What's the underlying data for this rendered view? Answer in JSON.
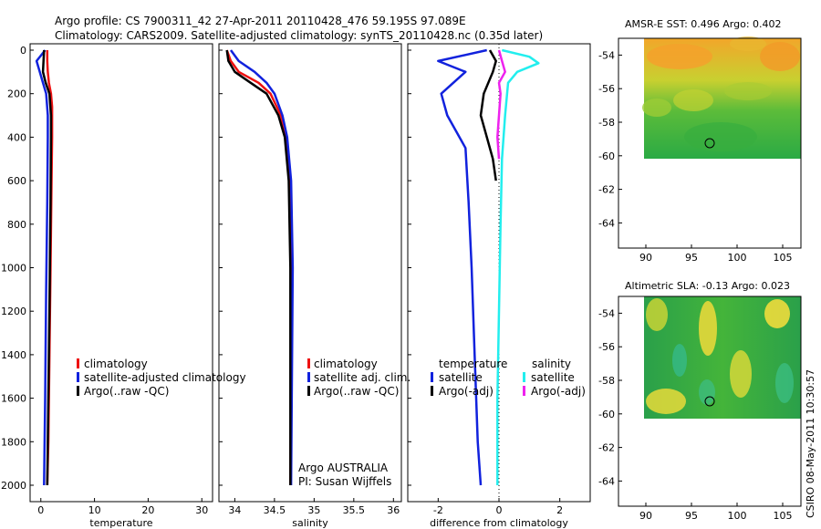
{
  "header": {
    "line1": "Argo profile: CS 7900311_42 27-Apr-2011 20110428_476 59.195S 97.089E",
    "line2": "Climatology: CARS2009. Satellite-adjusted climatology: synTS_20110428.nc (0.35d later)"
  },
  "credit": "CSIRO 08-May-2011 10:30:57",
  "colors": {
    "climatology": "#ee1111",
    "satellite": "#1122dd",
    "argo": "#000000",
    "satellite_sal": "#22eeee",
    "argo_sal": "#ee22ee"
  },
  "chart_data": [
    {
      "id": "temperature-panel",
      "type": "line",
      "xlabel": "temperature",
      "xlim": [
        -2,
        32
      ],
      "ylim": [
        2050,
        0
      ],
      "xticks": [
        0,
        10,
        20,
        30
      ],
      "yticks": [
        0,
        200,
        400,
        600,
        800,
        1000,
        1200,
        1400,
        1600,
        1800,
        2000
      ],
      "series": [
        {
          "name": "climatology",
          "color": "#ee1111",
          "x": [
            1.2,
            1.2,
            1.3,
            1.5,
            1.9,
            2.1,
            2.1,
            2.0,
            1.8,
            1.6,
            1.4,
            1.2
          ],
          "y": [
            0,
            50,
            100,
            150,
            200,
            260,
            400,
            600,
            1000,
            1400,
            1800,
            2000
          ]
        },
        {
          "name": "satellite-adjusted climatology",
          "color": "#1122dd",
          "x": [
            0.8,
            -0.8,
            -0.2,
            0.4,
            1.0,
            1.3,
            1.3,
            1.2,
            1.0,
            0.8,
            0.6
          ],
          "y": [
            0,
            50,
            100,
            150,
            200,
            300,
            400,
            700,
            1100,
            1600,
            2000
          ]
        },
        {
          "name": "Argo(..raw -QC)",
          "color": "#000000",
          "x": [
            0.6,
            0.5,
            0.4,
            0.9,
            1.6,
            1.9,
            1.9,
            1.8,
            1.6,
            1.4,
            1.2
          ],
          "y": [
            0,
            50,
            100,
            150,
            200,
            300,
            400,
            700,
            1200,
            1600,
            2000
          ]
        }
      ],
      "legend": [
        "climatology",
        "satellite-adjusted climatology",
        "Argo(..raw -QC)"
      ]
    },
    {
      "id": "salinity-panel",
      "type": "line",
      "xlabel": "salinity",
      "xlim": [
        33.8,
        36.1
      ],
      "ylim": [
        2050,
        0
      ],
      "xticks": [
        34,
        34.5,
        35,
        35.5,
        36
      ],
      "xticklabels": [
        "34",
        "34.5",
        "35",
        "35.5",
        "36"
      ],
      "series": [
        {
          "name": "climatology",
          "color": "#ee1111",
          "x": [
            33.9,
            33.95,
            34.05,
            34.3,
            34.45,
            34.58,
            34.65,
            34.7,
            34.72,
            34.71,
            34.7
          ],
          "y": [
            0,
            50,
            100,
            150,
            200,
            300,
            400,
            600,
            1000,
            1500,
            2000
          ]
        },
        {
          "name": "satellite adj. clim.",
          "color": "#1122dd",
          "x": [
            33.95,
            34.05,
            34.25,
            34.4,
            34.5,
            34.6,
            34.66,
            34.71,
            34.73,
            34.72,
            34.71
          ],
          "y": [
            0,
            50,
            100,
            150,
            200,
            300,
            400,
            600,
            1000,
            1500,
            2000
          ]
        },
        {
          "name": "Argo(..raw -QC)",
          "color": "#000000",
          "x": [
            33.9,
            33.92,
            34.0,
            34.2,
            34.4,
            34.55,
            34.63,
            34.68,
            34.7,
            34.7,
            34.7
          ],
          "y": [
            0,
            50,
            100,
            150,
            200,
            300,
            400,
            600,
            1000,
            1500,
            2000
          ]
        }
      ],
      "legend": [
        "climatology",
        "satellite adj. clim.",
        "Argo(..raw -QC)"
      ],
      "annotation": [
        "Argo AUSTRALIA",
        "PI: Susan Wijffels"
      ]
    },
    {
      "id": "difference-panel",
      "type": "line",
      "xlabel": "difference from climatology",
      "xlim": [
        -3,
        3
      ],
      "ylim": [
        2050,
        0
      ],
      "xticks": [
        -2,
        0,
        2
      ],
      "series": [
        {
          "name": "temperature satellite",
          "color": "#1122dd",
          "x": [
            -0.4,
            -2.0,
            -1.1,
            -1.9,
            -1.7,
            -1.1,
            -1.0,
            -0.9,
            -0.8,
            -0.7,
            -0.6
          ],
          "y": [
            0,
            50,
            100,
            200,
            300,
            450,
            700,
            1000,
            1400,
            1800,
            2000
          ]
        },
        {
          "name": "temperature Argo(-adj)",
          "color": "#000000",
          "x": [
            -0.3,
            -0.1,
            -0.2,
            -0.5,
            -0.6,
            -0.4,
            -0.2,
            -0.15,
            -0.1
          ],
          "y": [
            0,
            50,
            100,
            200,
            300,
            400,
            500,
            550,
            600
          ]
        },
        {
          "name": "salinity satellite",
          "color": "#22eeee",
          "x": [
            0.1,
            1.0,
            1.3,
            0.6,
            0.3,
            0.2,
            0.1,
            0.05,
            0.0,
            -0.05,
            -0.05
          ],
          "y": [
            0,
            30,
            60,
            100,
            150,
            300,
            500,
            800,
            1200,
            1600,
            2000
          ]
        },
        {
          "name": "salinity Argo(-adj)",
          "color": "#ee22ee",
          "x": [
            0.0,
            0.1,
            0.2,
            0.0,
            0.05,
            0.0,
            -0.05,
            0.0
          ],
          "y": [
            0,
            50,
            100,
            150,
            200,
            300,
            400,
            500
          ]
        }
      ],
      "legend_temperature": {
        "title": "temperature",
        "items": [
          "satellite",
          "Argo(-adj)"
        ]
      },
      "legend_salinity": {
        "title": "salinity",
        "items": [
          "satellite",
          "Argo(-adj)"
        ]
      }
    },
    {
      "id": "sst-map",
      "type": "heatmap",
      "title": "AMSR-E SST: 0.496 Argo: 0.402",
      "xlim": [
        87,
        107
      ],
      "ylim": [
        -65.5,
        -53
      ],
      "xticks": [
        90,
        95,
        100,
        105
      ],
      "yticks": [
        -54,
        -56,
        -58,
        -60,
        -62,
        -64
      ],
      "data_extent": {
        "lon": [
          90,
          107
        ],
        "lat": [
          -60.2,
          -53
        ]
      },
      "argo_position": {
        "lon": 97.089,
        "lat": -59.195
      }
    },
    {
      "id": "sla-map",
      "type": "heatmap",
      "title": "Altimetric SLA: -0.13 Argo: 0.023",
      "xlim": [
        87,
        107
      ],
      "ylim": [
        -65.5,
        -53
      ],
      "xticks": [
        90,
        95,
        100,
        105
      ],
      "yticks": [
        -54,
        -56,
        -58,
        -60,
        -62,
        -64
      ],
      "data_extent": {
        "lon": [
          90,
          107
        ],
        "lat": [
          -60.2,
          -53
        ]
      },
      "argo_position": {
        "lon": 97.089,
        "lat": -59.195
      }
    }
  ]
}
